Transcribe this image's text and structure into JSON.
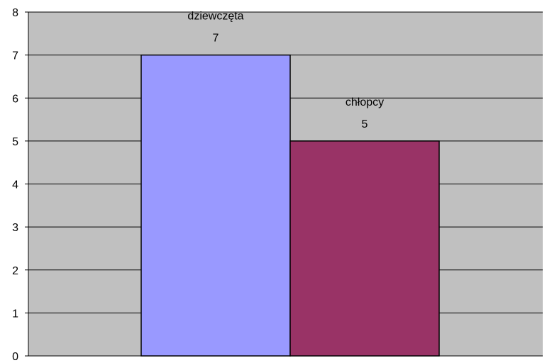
{
  "chart_data": {
    "type": "bar",
    "categories": [
      "dziewczęta",
      "chłopcy"
    ],
    "values": [
      7,
      5
    ],
    "value_labels": [
      "7",
      "5"
    ],
    "colors": [
      "#9999ff",
      "#993366"
    ],
    "plot_background": "#c0c0c0",
    "grid": true,
    "ylim": [
      0,
      8
    ],
    "yticks": [
      "0",
      "1",
      "2",
      "3",
      "4",
      "5",
      "6",
      "7",
      "8"
    ],
    "legend": "none"
  }
}
